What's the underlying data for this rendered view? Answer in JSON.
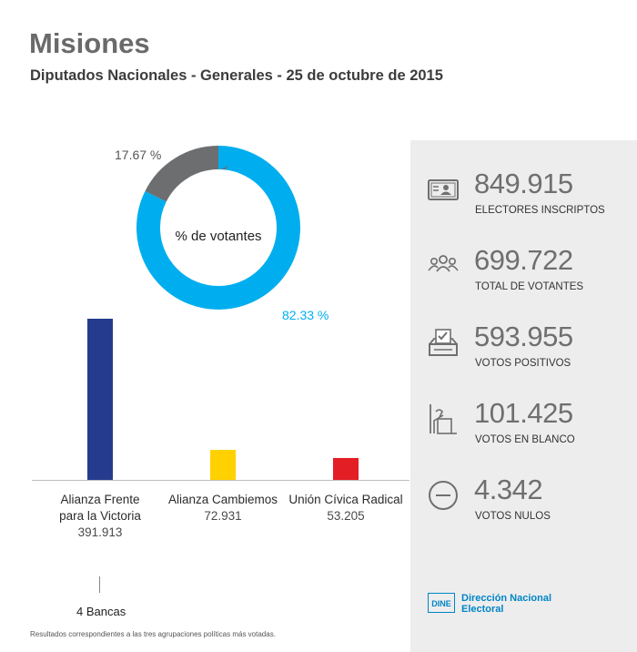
{
  "header": {
    "title": "Misiones",
    "subtitle": "Diputados Nacionales - Generales - 25 de octubre de 2015"
  },
  "colors": {
    "donut_blue": "#00aeef",
    "donut_gray": "#6d6e70",
    "bar_fpv": "#253c8e",
    "bar_cambiemos": "#ffd100",
    "bar_ucr": "#e31e24",
    "panel_bg": "#ededed",
    "dine_blue": "#0085c7"
  },
  "chart_data": [
    {
      "type": "pie",
      "center_label": "% de votantes",
      "slices": [
        {
          "value": 82.33,
          "label": "82.33 %",
          "color": "#00aeef"
        },
        {
          "value": 17.67,
          "label": "17.67 %",
          "color": "#6d6e70"
        }
      ]
    },
    {
      "type": "bar",
      "categories": [
        "Alianza Frente para la Victoria",
        "Alianza Cambiemos",
        "Unión Cívica Radical"
      ],
      "category_lines": [
        [
          "Alianza Frente",
          "para la Victoria"
        ],
        [
          "Alianza Cambiemos"
        ],
        [
          "Unión Cívica Radical"
        ]
      ],
      "values": [
        391913,
        72931,
        53205
      ],
      "value_labels": [
        "391.913",
        "72.931",
        "53.205"
      ],
      "colors": [
        "#253c8e",
        "#ffd100",
        "#e31e24"
      ],
      "ylim": [
        0,
        391913
      ]
    }
  ],
  "seats": {
    "label": "4 Bancas"
  },
  "footnote": "Resultados correspondientes a las tres agrupaciones políticas más votadas.",
  "stats": [
    {
      "icon": "id-card-icon",
      "value": "849.915",
      "label": "ELECTORES INSCRIPTOS"
    },
    {
      "icon": "people-icon",
      "value": "699.722",
      "label": "TOTAL DE VOTANTES"
    },
    {
      "icon": "ballot-box-icon",
      "value": "593.955",
      "label": "VOTOS POSITIVOS"
    },
    {
      "icon": "blank-vote-icon",
      "value": "101.425",
      "label": "VOTOS EN BLANCO"
    },
    {
      "icon": "null-vote-icon",
      "value": "4.342",
      "label": "VOTOS NULOS"
    }
  ],
  "logo": {
    "box_text": "DINE",
    "name_line1": "Dirección Nacional",
    "name_line2": "Electoral"
  }
}
